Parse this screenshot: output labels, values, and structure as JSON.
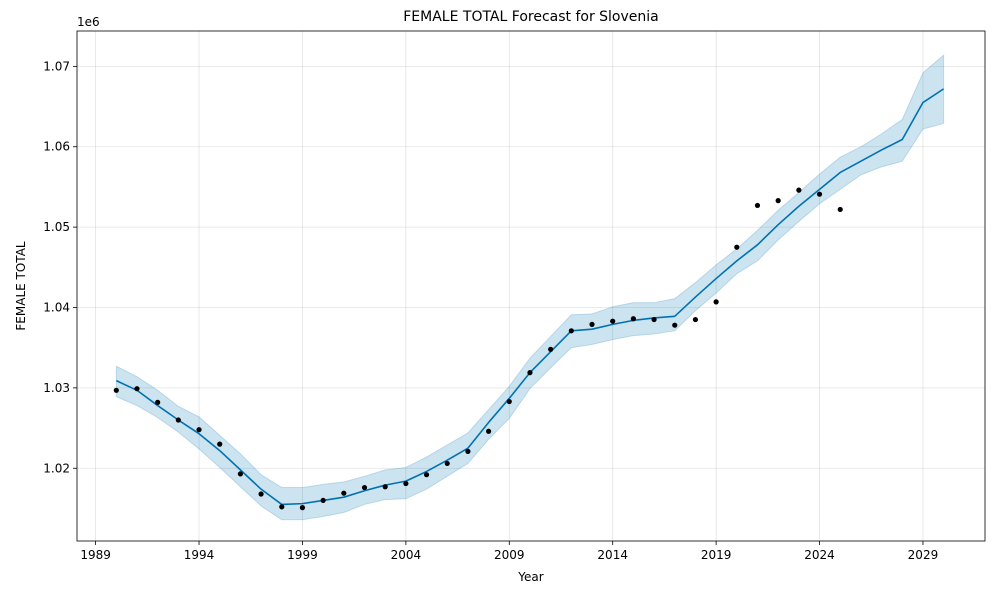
{
  "chart_data": {
    "type": "line",
    "title": "FEMALE TOTAL Forecast for Slovenia",
    "xlabel": "Year",
    "ylabel": "FEMALE TOTAL",
    "y_offset_label": "1e6",
    "xlim": [
      1988.1,
      2032.0
    ],
    "ylim": [
      1.01095,
      1.0744
    ],
    "x_ticks": [
      1989,
      1994,
      1999,
      2004,
      2009,
      2014,
      2019,
      2024,
      2029
    ],
    "x_tick_labels": [
      "1989",
      "1994",
      "1999",
      "2004",
      "2009",
      "2014",
      "2019",
      "2024",
      "2029"
    ],
    "y_ticks": [
      1.02,
      1.03,
      1.04,
      1.05,
      1.06,
      1.07
    ],
    "y_tick_labels": [
      "1.02",
      "1.03",
      "1.04",
      "1.05",
      "1.06",
      "1.07"
    ],
    "grid": true,
    "colors": {
      "forecast_line": "#0072B2",
      "uncertainty_band": "#0072B2",
      "observed_points": "#000000"
    },
    "series": [
      {
        "kind": "observed",
        "x": [
          1990,
          1991,
          1992,
          1993,
          1994,
          1995,
          1996,
          1997,
          1998,
          1999,
          2000,
          2001,
          2002,
          2003,
          2004,
          2005,
          2006,
          2007,
          2008,
          2009,
          2010,
          2011,
          2012,
          2013,
          2014,
          2015,
          2016,
          2017,
          2018,
          2019,
          2020,
          2021,
          2022,
          2023,
          2024,
          2025
        ],
        "values": [
          1.0297,
          1.0299,
          1.0282,
          1.026,
          1.0248,
          1.023,
          1.0193,
          1.0168,
          1.0152,
          1.0151,
          1.016,
          1.0169,
          1.0176,
          1.0177,
          1.0181,
          1.0192,
          1.0206,
          1.0221,
          1.0246,
          1.0283,
          1.0319,
          1.0348,
          1.0371,
          1.0379,
          1.0383,
          1.0386,
          1.0385,
          1.0378,
          1.0385,
          1.0407,
          1.0475,
          1.0527,
          1.0533,
          1.0546,
          1.0541,
          1.0522
        ]
      },
      {
        "kind": "forecast",
        "x": [
          1990,
          1991,
          1992,
          1993,
          1994,
          1995,
          1996,
          1997,
          1998,
          1999,
          2000,
          2001,
          2002,
          2003,
          2004,
          2005,
          2006,
          2007,
          2008,
          2009,
          2010,
          2011,
          2012,
          2013,
          2014,
          2015,
          2016,
          2017,
          2018,
          2019,
          2020,
          2021,
          2022,
          2023,
          2024,
          2025,
          2026,
          2027,
          2028,
          2029,
          2030
        ],
        "values": [
          1.0309,
          1.0297,
          1.0278,
          1.026,
          1.0243,
          1.0222,
          1.0198,
          1.0174,
          1.0155,
          1.0156,
          1.016,
          1.0164,
          1.0172,
          1.0179,
          1.0184,
          1.0196,
          1.021,
          1.0225,
          1.0257,
          1.0287,
          1.0319,
          1.0345,
          1.0371,
          1.0373,
          1.0379,
          1.0384,
          1.0387,
          1.0389,
          1.0413,
          1.0436,
          1.0458,
          1.0478,
          1.0503,
          1.0526,
          1.0547,
          1.0568,
          1.0582,
          1.0596,
          1.0609,
          1.0655,
          1.0672
        ]
      },
      {
        "kind": "uncertainty",
        "x": [
          1990,
          1991,
          1992,
          1993,
          1994,
          1995,
          1996,
          1997,
          1998,
          1999,
          2000,
          2001,
          2002,
          2003,
          2004,
          2005,
          2006,
          2007,
          2008,
          2009,
          2010,
          2011,
          2012,
          2013,
          2014,
          2015,
          2016,
          2017,
          2018,
          2019,
          2020,
          2021,
          2022,
          2023,
          2024,
          2025,
          2026,
          2027,
          2028,
          2029,
          2030
        ],
        "upper": [
          1.0327,
          1.0314,
          1.0297,
          1.0277,
          1.0264,
          1.0241,
          1.0218,
          1.0192,
          1.0176,
          1.0176,
          1.018,
          1.0183,
          1.019,
          1.0198,
          1.0201,
          1.0214,
          1.0229,
          1.0244,
          1.0273,
          1.0302,
          1.0337,
          1.0364,
          1.0391,
          1.0392,
          1.0401,
          1.0406,
          1.0406,
          1.0411,
          1.0431,
          1.0453,
          1.0473,
          1.0496,
          1.0521,
          1.0543,
          1.0566,
          1.0587,
          1.06,
          1.0616,
          1.0634,
          1.0692,
          1.0714
        ],
        "lower": [
          1.0289,
          1.0278,
          1.0263,
          1.0245,
          1.0224,
          1.0201,
          1.0177,
          1.0153,
          1.0136,
          1.0136,
          1.014,
          1.0145,
          1.0155,
          1.0161,
          1.0162,
          1.0174,
          1.019,
          1.0206,
          1.0236,
          1.0262,
          1.0299,
          1.0325,
          1.035,
          1.0354,
          1.036,
          1.0365,
          1.0367,
          1.0371,
          1.0396,
          1.0418,
          1.0442,
          1.0458,
          1.0484,
          1.0507,
          1.0529,
          1.0547,
          1.0565,
          1.0575,
          1.0582,
          1.0622,
          1.0629
        ]
      }
    ]
  }
}
